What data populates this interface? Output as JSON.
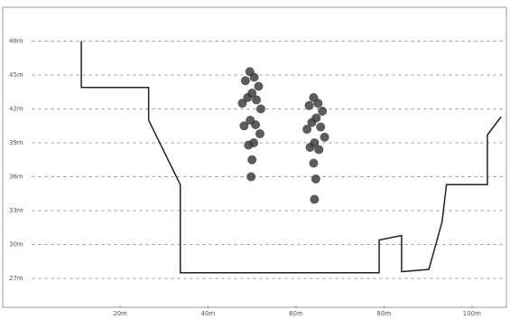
{
  "chart_data": {
    "type": "line",
    "xlim": [
      0,
      107
    ],
    "ylim": [
      24.6,
      51
    ],
    "xticks": [
      {
        "value": 20,
        "label": "20m"
      },
      {
        "value": 40,
        "label": "40m"
      },
      {
        "value": 60,
        "label": "60m"
      },
      {
        "value": 80,
        "label": "80m"
      },
      {
        "value": 100,
        "label": "100m"
      }
    ],
    "yticks": [
      {
        "value": 27,
        "label": "27m"
      },
      {
        "value": 30,
        "label": "30m"
      },
      {
        "value": 33,
        "label": "33m"
      },
      {
        "value": 36,
        "label": "36m"
      },
      {
        "value": 39,
        "label": "39m"
      },
      {
        "value": 42,
        "label": "42m"
      },
      {
        "value": 45,
        "label": "45m"
      },
      {
        "value": 48,
        "label": "48m"
      }
    ],
    "grid": true,
    "series": [
      {
        "type": "line",
        "color": "#222222",
        "x": [
          11.2,
          11.2,
          26.5,
          26.5,
          33.7,
          33.7,
          78.9,
          78.9,
          84,
          84,
          90.2,
          93.2,
          94.2,
          103.5,
          103.5,
          106.6
        ],
        "values": [
          48,
          43.9,
          43.9,
          41,
          35.3,
          27.5,
          27.5,
          30.4,
          30.8,
          27.6,
          27.8,
          32,
          35.3,
          35.3,
          39.7,
          41.3
        ]
      },
      {
        "type": "scatter",
        "color": "#333333",
        "x": [
          48.5,
          49.5,
          50.5,
          51.5,
          47.8,
          49,
          50,
          51,
          52,
          48.2,
          49.6,
          50.8,
          51.8,
          49.2,
          50.4,
          50,
          49.8,
          63,
          64,
          65,
          66,
          62.5,
          63.6,
          64.6,
          65.6,
          66.5,
          63.2,
          64.2,
          65.2,
          64,
          64.5,
          64.2
        ],
        "values": [
          44.5,
          45.3,
          44.8,
          44,
          42.5,
          43,
          43.4,
          42.8,
          42,
          40.5,
          41,
          40.6,
          39.8,
          38.8,
          39,
          37.5,
          36,
          42.3,
          43,
          42.5,
          41.8,
          40.2,
          40.8,
          41.2,
          40.4,
          39.5,
          38.6,
          39,
          38.4,
          37.2,
          35.8,
          34
        ]
      }
    ]
  }
}
